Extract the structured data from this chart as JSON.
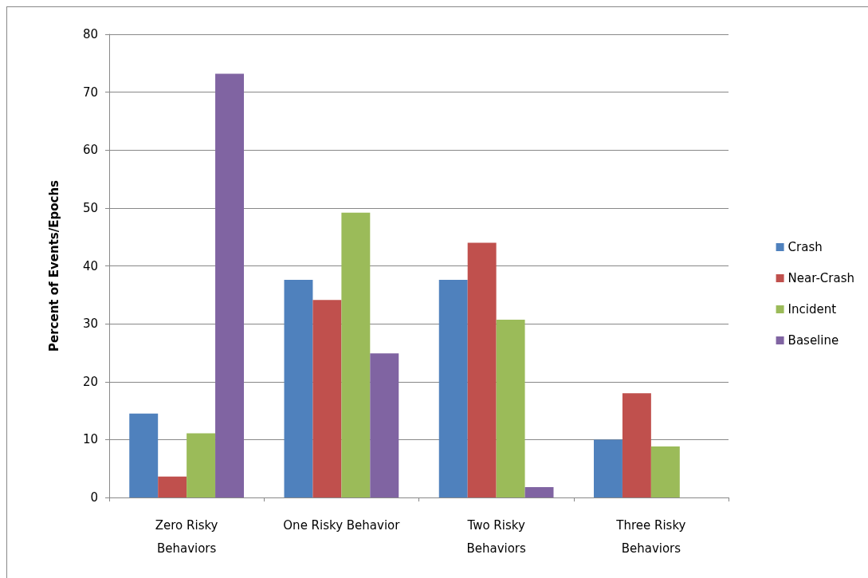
{
  "chart_data": {
    "type": "bar",
    "ylabel": "Percent of Events/Epochs",
    "categories": [
      "Zero Risky\nBehaviors",
      "One Risky Behavior",
      "Two Risky\nBehaviors",
      "Three Risky\nBehaviors"
    ],
    "series": [
      {
        "name": "Crash",
        "color": "#4f81bd",
        "values": [
          14.5,
          37.6,
          37.6,
          10.0
        ]
      },
      {
        "name": "Near-Crash",
        "color": "#c0504d",
        "values": [
          3.6,
          34.1,
          44.0,
          18.0
        ]
      },
      {
        "name": "Incident",
        "color": "#9bbb59",
        "values": [
          11.1,
          49.2,
          30.7,
          8.8
        ]
      },
      {
        "name": "Baseline",
        "color": "#8064a2",
        "values": [
          73.2,
          24.9,
          1.8,
          null
        ]
      }
    ],
    "ylim": [
      0,
      80
    ],
    "yticks": [
      0,
      10,
      20,
      30,
      40,
      50,
      60,
      70,
      80
    ],
    "grid": "y",
    "legend": "right"
  }
}
